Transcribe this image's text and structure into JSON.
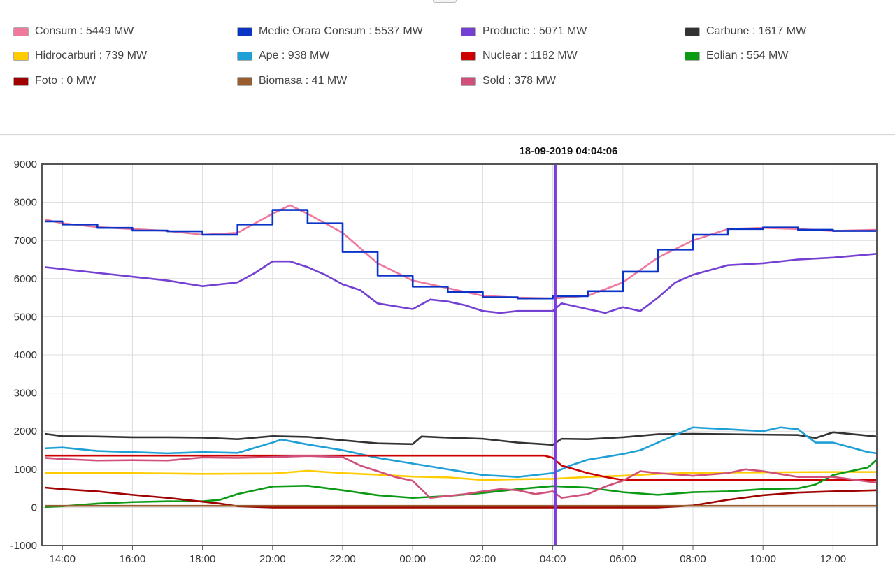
{
  "legend": {
    "items": [
      {
        "label": "Consum : 5449 MW",
        "color": "#f0799c"
      },
      {
        "label": "Medie Orara Consum : 5537 MW",
        "color": "#0a34c8"
      },
      {
        "label": "Productie : 5071 MW",
        "color": "#7440d4"
      },
      {
        "label": "Carbune : 1617 MW",
        "color": "#333333"
      },
      {
        "label": "Hidrocarburi : 739 MW",
        "color": "#ffcc00"
      },
      {
        "label": "Ape : 938 MW",
        "color": "#1ea0d6"
      },
      {
        "label": "Nuclear : 1182 MW",
        "color": "#cc0000"
      },
      {
        "label": "Eolian : 554 MW",
        "color": "#0a9a14"
      },
      {
        "label": "Foto : 0 MW",
        "color": "#a00000"
      },
      {
        "label": "Biomasa : 41 MW",
        "color": "#9a5e2e"
      },
      {
        "label": "Sold : 378 MW",
        "color": "#d0507a"
      }
    ]
  },
  "chart_data": {
    "type": "line",
    "title": "18-09-2019 04:04:06",
    "xlabel": "",
    "ylabel": "",
    "ylim": [
      -1000,
      9000
    ],
    "xlim": [
      "13:25",
      "13:15 (+1 day)"
    ],
    "yticks": [
      "-1000",
      "0",
      "1000",
      "2000",
      "3000",
      "4000",
      "5000",
      "6000",
      "7000",
      "8000",
      "9000"
    ],
    "xticks": [
      "14:00",
      "16:00",
      "18:00",
      "20:00",
      "22:00",
      "00:00",
      "02:00",
      "04:00",
      "06:00",
      "08:00",
      "10:00",
      "12:00"
    ],
    "grid": true,
    "cursor_time": "04:04",
    "x_hours_from_midnight_prev_day_note_values": "x values are clock times",
    "series": [
      {
        "name": "Consum",
        "color": "#f0799c",
        "x": [
          "13:30",
          "14:00",
          "15:00",
          "16:00",
          "17:00",
          "18:00",
          "19:00",
          "20:00",
          "20:30",
          "21:00",
          "22:00",
          "23:00",
          "00:00",
          "01:00",
          "02:00",
          "03:00",
          "04:00",
          "05:00",
          "06:00",
          "07:00",
          "08:00",
          "09:00",
          "10:00",
          "11:00",
          "12:00",
          "13:15"
        ],
        "values": [
          7550,
          7450,
          7350,
          7300,
          7250,
          7150,
          7200,
          7700,
          7920,
          7700,
          7200,
          6400,
          5950,
          5750,
          5550,
          5500,
          5480,
          5550,
          5900,
          6550,
          7000,
          7300,
          7330,
          7300,
          7250,
          7280
        ]
      },
      {
        "name": "Medie Orara Consum",
        "color": "#0a34c8",
        "x": [
          "13:30",
          "14:00",
          "15:00",
          "16:00",
          "17:00",
          "18:00",
          "19:00",
          "20:00",
          "21:00",
          "22:00",
          "23:00",
          "00:00",
          "01:00",
          "02:00",
          "03:00",
          "04:00",
          "05:00",
          "06:00",
          "07:00",
          "08:00",
          "09:00",
          "10:00",
          "11:00",
          "12:00",
          "13:15"
        ],
        "values": [
          7500,
          7420,
          7330,
          7260,
          7240,
          7150,
          7420,
          7800,
          7450,
          6700,
          6080,
          5790,
          5650,
          5510,
          5480,
          5540,
          5670,
          6180,
          6760,
          7150,
          7300,
          7340,
          7280,
          7250,
          7250
        ]
      },
      {
        "name": "Productie",
        "color": "#7440d4",
        "x": [
          "13:30",
          "14:00",
          "15:00",
          "16:00",
          "17:00",
          "18:00",
          "19:00",
          "19:30",
          "20:00",
          "20:30",
          "21:00",
          "21:30",
          "22:00",
          "22:30",
          "23:00",
          "00:00",
          "00:30",
          "01:00",
          "01:30",
          "02:00",
          "02:30",
          "03:00",
          "04:00",
          "04:15",
          "05:00",
          "05:30",
          "06:00",
          "06:30",
          "07:00",
          "07:30",
          "08:00",
          "09:00",
          "10:00",
          "11:00",
          "12:00",
          "13:15"
        ],
        "values": [
          6300,
          6250,
          6150,
          6050,
          5950,
          5800,
          5900,
          6150,
          6450,
          6450,
          6300,
          6100,
          5850,
          5700,
          5350,
          5200,
          5450,
          5400,
          5300,
          5150,
          5100,
          5150,
          5150,
          5350,
          5200,
          5100,
          5250,
          5150,
          5500,
          5900,
          6100,
          6350,
          6400,
          6500,
          6550,
          6650
        ]
      },
      {
        "name": "Carbune",
        "color": "#333333",
        "x": [
          "13:30",
          "14:00",
          "15:00",
          "16:00",
          "17:00",
          "18:00",
          "19:00",
          "20:00",
          "21:00",
          "22:00",
          "23:00",
          "00:00",
          "00:15",
          "01:00",
          "02:00",
          "03:00",
          "04:00",
          "04:15",
          "05:00",
          "06:00",
          "07:00",
          "08:00",
          "09:00",
          "10:00",
          "11:00",
          "11:30",
          "12:00",
          "13:15"
        ],
        "values": [
          1930,
          1870,
          1860,
          1840,
          1840,
          1830,
          1790,
          1870,
          1850,
          1760,
          1680,
          1660,
          1860,
          1830,
          1800,
          1700,
          1640,
          1800,
          1790,
          1840,
          1920,
          1930,
          1920,
          1910,
          1900,
          1820,
          1970,
          1860
        ]
      },
      {
        "name": "Hidrocarburi",
        "color": "#ffcc00",
        "x": [
          "13:30",
          "14:00",
          "16:00",
          "18:00",
          "20:00",
          "21:00",
          "22:00",
          "23:00",
          "00:00",
          "01:00",
          "02:00",
          "03:00",
          "04:00",
          "05:00",
          "06:00",
          "07:00",
          "08:00",
          "10:00",
          "12:00",
          "13:15"
        ],
        "values": [
          910,
          910,
          900,
          880,
          890,
          960,
          900,
          860,
          810,
          790,
          720,
          740,
          750,
          800,
          830,
          880,
          910,
          920,
          930,
          930
        ]
      },
      {
        "name": "Ape",
        "color": "#1ea0d6",
        "x": [
          "13:30",
          "14:00",
          "15:00",
          "16:00",
          "17:00",
          "18:00",
          "19:00",
          "20:00",
          "20:15",
          "21:00",
          "22:00",
          "23:00",
          "00:00",
          "01:00",
          "02:00",
          "03:00",
          "04:00",
          "04:30",
          "05:00",
          "06:00",
          "06:30",
          "07:00",
          "07:30",
          "08:00",
          "09:00",
          "10:00",
          "10:30",
          "11:00",
          "11:30",
          "12:00",
          "13:00",
          "13:15"
        ],
        "values": [
          1550,
          1570,
          1480,
          1450,
          1420,
          1450,
          1430,
          1700,
          1780,
          1650,
          1500,
          1300,
          1150,
          1000,
          850,
          800,
          900,
          1100,
          1250,
          1400,
          1500,
          1700,
          1900,
          2100,
          2050,
          2000,
          2100,
          2050,
          1700,
          1700,
          1450,
          1420
        ]
      },
      {
        "name": "Nuclear",
        "color": "#cc0000",
        "x": [
          "13:30",
          "16:00",
          "20:00",
          "00:00",
          "03:00",
          "03:45",
          "04:00",
          "04:15",
          "05:00",
          "05:30",
          "06:00",
          "08:00",
          "10:00",
          "12:00",
          "13:15"
        ],
        "values": [
          1360,
          1360,
          1360,
          1360,
          1360,
          1360,
          1300,
          1100,
          900,
          800,
          720,
          720,
          720,
          720,
          720
        ]
      },
      {
        "name": "Eolian",
        "color": "#0a9a14",
        "x": [
          "13:30",
          "14:00",
          "15:00",
          "16:00",
          "17:00",
          "18:00",
          "18:30",
          "19:00",
          "20:00",
          "21:00",
          "22:00",
          "23:00",
          "00:00",
          "01:00",
          "02:00",
          "03:00",
          "04:00",
          "05:00",
          "06:00",
          "07:00",
          "08:00",
          "09:00",
          "10:00",
          "11:00",
          "11:30",
          "12:00",
          "12:30",
          "13:00",
          "13:15"
        ],
        "values": [
          10,
          30,
          100,
          140,
          160,
          160,
          200,
          350,
          550,
          570,
          450,
          320,
          250,
          300,
          380,
          480,
          560,
          520,
          400,
          330,
          400,
          420,
          480,
          500,
          600,
          850,
          950,
          1050,
          1250
        ]
      },
      {
        "name": "Foto",
        "color": "#a00000",
        "x": [
          "13:30",
          "14:00",
          "15:00",
          "16:00",
          "17:00",
          "18:00",
          "18:30",
          "19:00",
          "20:00",
          "00:00",
          "04:00",
          "07:00",
          "08:00",
          "09:00",
          "10:00",
          "11:00",
          "12:00",
          "13:15"
        ],
        "values": [
          520,
          480,
          420,
          330,
          250,
          150,
          100,
          30,
          0,
          0,
          0,
          0,
          50,
          200,
          320,
          390,
          420,
          450
        ]
      },
      {
        "name": "Biomasa",
        "color": "#9a5e2e",
        "x": [
          "13:30",
          "18:00",
          "00:00",
          "06:00",
          "13:15"
        ],
        "values": [
          41,
          41,
          41,
          41,
          41
        ]
      },
      {
        "name": "Sold",
        "color": "#d0507a",
        "x": [
          "13:30",
          "14:00",
          "15:00",
          "16:00",
          "17:00",
          "18:00",
          "19:00",
          "20:00",
          "21:00",
          "22:00",
          "22:30",
          "23:00",
          "23:30",
          "00:00",
          "00:30",
          "01:00",
          "01:30",
          "02:00",
          "02:30",
          "03:00",
          "03:30",
          "04:00",
          "04:15",
          "05:00",
          "05:30",
          "06:00",
          "06:30",
          "07:00",
          "08:00",
          "09:00",
          "09:30",
          "10:00",
          "11:00",
          "12:00",
          "13:15"
        ],
        "values": [
          1300,
          1270,
          1230,
          1240,
          1230,
          1310,
          1300,
          1320,
          1350,
          1320,
          1100,
          950,
          800,
          700,
          250,
          300,
          350,
          420,
          480,
          450,
          350,
          420,
          250,
          350,
          550,
          700,
          950,
          900,
          830,
          900,
          1000,
          950,
          800,
          800,
          650
        ]
      }
    ]
  }
}
